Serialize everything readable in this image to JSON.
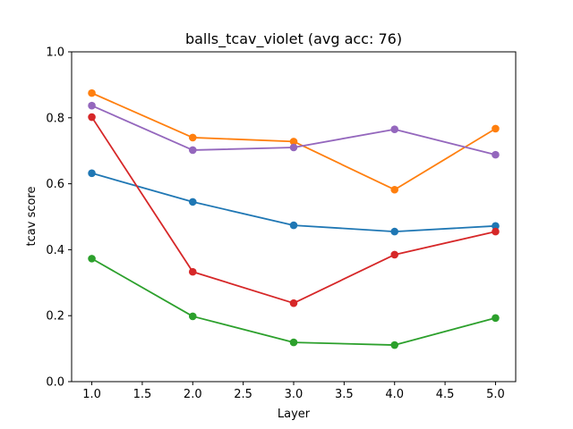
{
  "chart_data": {
    "type": "line",
    "title": "balls_tcav_violet (avg acc: 76)",
    "xlabel": "Layer",
    "ylabel": "tcav score",
    "xlim": [
      0.8,
      5.2
    ],
    "ylim": [
      0.0,
      1.0
    ],
    "xticks": [
      "1.0",
      "1.5",
      "2.0",
      "2.5",
      "3.0",
      "3.5",
      "4.0",
      "4.5",
      "5.0"
    ],
    "yticks": [
      "0.0",
      "0.2",
      "0.4",
      "0.6",
      "0.8",
      "1.0"
    ],
    "grid": false,
    "x": [
      1,
      2,
      3,
      4,
      5
    ],
    "series": [
      {
        "color": "#1f77b4",
        "values": [
          0.632,
          0.545,
          0.474,
          0.455,
          0.472
        ]
      },
      {
        "color": "#ff7f0e",
        "values": [
          0.875,
          0.74,
          0.728,
          0.582,
          0.767
        ]
      },
      {
        "color": "#2ca02c",
        "values": [
          0.373,
          0.198,
          0.119,
          0.111,
          0.193
        ]
      },
      {
        "color": "#d62728",
        "values": [
          0.802,
          0.333,
          0.238,
          0.385,
          0.455
        ]
      },
      {
        "color": "#9467bd",
        "values": [
          0.837,
          0.702,
          0.71,
          0.765,
          0.688
        ]
      }
    ]
  }
}
